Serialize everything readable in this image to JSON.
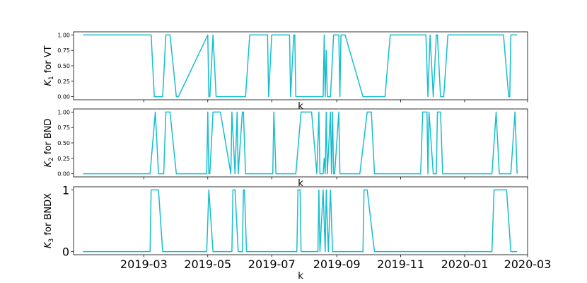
{
  "chart_data": [
    {
      "type": "line",
      "xlabel": "k",
      "ylabel": "K_1 for VT",
      "ylabel_main": "K",
      "ylabel_sub": "1",
      "ylabel_rest": " for VT",
      "ylim": [
        -0.05,
        1.05
      ],
      "yticks": [
        0,
        0.25,
        0.5,
        0.75,
        1
      ],
      "ytick_labels": [
        "0.00",
        "0.25",
        "0.50",
        "0.75",
        "1.00"
      ],
      "ytick_style": "small",
      "show_xticklabels": false,
      "color": "#17becf",
      "series": [
        {
          "x": [
            "2019-01-02",
            "2019-03-08",
            "2019-03-11",
            "2019-03-19",
            "2019-03-22",
            "2019-03-26",
            "2019-04-01",
            "2019-04-03",
            "2019-05-01",
            "2019-05-02",
            "2019-05-03",
            "2019-05-06",
            "2019-05-09",
            "2019-06-06",
            "2019-06-10",
            "2019-06-27",
            "2019-06-28",
            "2019-07-01",
            "2019-07-18",
            "2019-07-19",
            "2019-07-22",
            "2019-07-23",
            "2019-07-24",
            "2019-08-19",
            "2019-08-20",
            "2019-08-21",
            "2019-08-22",
            "2019-08-23",
            "2019-08-26",
            "2019-08-29",
            "2019-08-30",
            "2019-09-03",
            "2019-09-04",
            "2019-09-05",
            "2019-09-09",
            "2019-09-26",
            "2019-10-17",
            "2019-10-22",
            "2019-10-25",
            "2019-11-25",
            "2019-11-27",
            "2019-11-29",
            "2019-12-02",
            "2019-12-05",
            "2019-12-06",
            "2019-12-09",
            "2019-12-12",
            "2019-12-16",
            "2020-02-07",
            "2020-02-12",
            "2020-02-13",
            "2020-02-14",
            "2020-02-20"
          ],
          "values": [
            1,
            1,
            0,
            0,
            1,
            1,
            0,
            0,
            1,
            0,
            0,
            1,
            0,
            0,
            1,
            1,
            0,
            1,
            1,
            0,
            1,
            1,
            0,
            0,
            1,
            0,
            0.75,
            0,
            0,
            1,
            1,
            1,
            0,
            1,
            1,
            0,
            0,
            1,
            1,
            1,
            0,
            1,
            0,
            1,
            1,
            0,
            0,
            1,
            1,
            0,
            0,
            1,
            1
          ]
        }
      ]
    },
    {
      "type": "line",
      "xlabel": "k",
      "ylabel": "K_2 for BND",
      "ylabel_main": "K",
      "ylabel_sub": "2",
      "ylabel_rest": " for BND",
      "ylim": [
        -0.05,
        1.05
      ],
      "yticks": [
        0,
        0.25,
        0.5,
        0.75,
        1
      ],
      "ytick_labels": [
        "0.00",
        "0.25",
        "0.50",
        "0.75",
        "1.00"
      ],
      "ytick_style": "small",
      "show_xticklabels": false,
      "color": "#17becf",
      "series": [
        {
          "x": [
            "2019-01-02",
            "2019-03-07",
            "2019-03-12",
            "2019-03-15",
            "2019-03-20",
            "2019-03-22",
            "2019-03-26",
            "2019-04-01",
            "2019-04-04",
            "2019-04-30",
            "2019-05-01",
            "2019-05-02",
            "2019-05-03",
            "2019-05-06",
            "2019-05-09",
            "2019-05-13",
            "2019-05-23",
            "2019-05-24",
            "2019-05-27",
            "2019-05-29",
            "2019-05-30",
            "2019-06-03",
            "2019-06-04",
            "2019-06-06",
            "2019-06-13",
            "2019-06-17",
            "2019-07-02",
            "2019-07-03",
            "2019-07-05",
            "2019-07-24",
            "2019-07-29",
            "2019-08-05",
            "2019-08-08",
            "2019-08-13",
            "2019-08-15",
            "2019-08-16",
            "2019-08-19",
            "2019-08-20",
            "2019-08-21",
            "2019-08-22",
            "2019-08-23",
            "2019-08-26",
            "2019-08-27",
            "2019-08-28",
            "2019-08-29",
            "2019-08-30",
            "2019-09-03",
            "2019-09-04",
            "2019-09-23",
            "2019-09-30",
            "2019-10-04",
            "2019-10-07",
            "2019-11-20",
            "2019-11-22",
            "2019-11-26",
            "2019-11-27",
            "2019-11-28",
            "2019-12-02",
            "2019-12-05",
            "2019-12-06",
            "2019-12-09",
            "2019-12-11",
            "2019-12-13",
            "2020-01-27",
            "2020-01-31",
            "2020-02-03",
            "2020-02-14",
            "2020-02-18",
            "2020-02-20"
          ],
          "values": [
            0,
            0,
            1,
            0,
            0,
            1,
            1,
            0,
            0,
            0,
            1,
            0,
            0,
            1,
            1,
            1,
            0,
            1,
            0,
            1,
            0,
            1,
            1,
            0,
            0,
            0,
            0,
            1,
            0,
            0,
            1,
            1,
            1,
            0,
            1,
            0,
            0,
            0.25,
            0,
            1,
            0,
            1,
            0,
            1,
            0,
            0,
            1,
            0,
            0,
            1,
            1,
            0,
            0,
            1,
            1,
            0,
            1,
            0,
            0,
            1,
            1,
            0,
            0,
            0,
            1,
            0,
            0,
            1,
            0
          ]
        }
      ]
    },
    {
      "type": "line",
      "xlabel": "k",
      "ylabel": "K_3 for BNDX",
      "ylabel_main": "K",
      "ylabel_sub": "3",
      "ylabel_rest": " for BNDX",
      "ylim": [
        -0.05,
        1.05
      ],
      "yticks": [
        0,
        1
      ],
      "ytick_labels": [
        "0",
        "1"
      ],
      "ytick_style": "large",
      "show_xticklabels": true,
      "xticks": [
        "2019-03-01",
        "2019-05-01",
        "2019-07-01",
        "2019-09-01",
        "2019-11-01",
        "2020-01-01",
        "2020-03-01"
      ],
      "xtick_labels": [
        "2019-03",
        "2019-05",
        "2019-07",
        "2019-09",
        "2019-11",
        "2020-01",
        "2020-03"
      ],
      "color": "#17becf",
      "series": [
        {
          "x": [
            "2019-01-02",
            "2019-03-07",
            "2019-03-08",
            "2019-03-15",
            "2019-03-19",
            "2019-04-30",
            "2019-05-02",
            "2019-05-06",
            "2019-05-24",
            "2019-05-25",
            "2019-05-27",
            "2019-05-30",
            "2019-06-03",
            "2019-06-04",
            "2019-06-05",
            "2019-06-07",
            "2019-07-25",
            "2019-07-26",
            "2019-07-28",
            "2019-07-29",
            "2019-08-14",
            "2019-08-15",
            "2019-08-16",
            "2019-08-19",
            "2019-08-21",
            "2019-08-22",
            "2019-08-24",
            "2019-08-26",
            "2019-08-28",
            "2019-08-30",
            "2019-09-26",
            "2019-09-27",
            "2019-09-30",
            "2019-10-07",
            "2020-01-27",
            "2020-01-29",
            "2020-02-10",
            "2020-02-14",
            "2020-02-20"
          ],
          "values": [
            0,
            0,
            1,
            1,
            0,
            0,
            1,
            0,
            0,
            1,
            1,
            0,
            0,
            1,
            1,
            0,
            0,
            1,
            1,
            0,
            0,
            1,
            0,
            1,
            0,
            1,
            0,
            1,
            0,
            0,
            0,
            1,
            1,
            0,
            0,
            1,
            1,
            0,
            0
          ]
        }
      ]
    }
  ]
}
